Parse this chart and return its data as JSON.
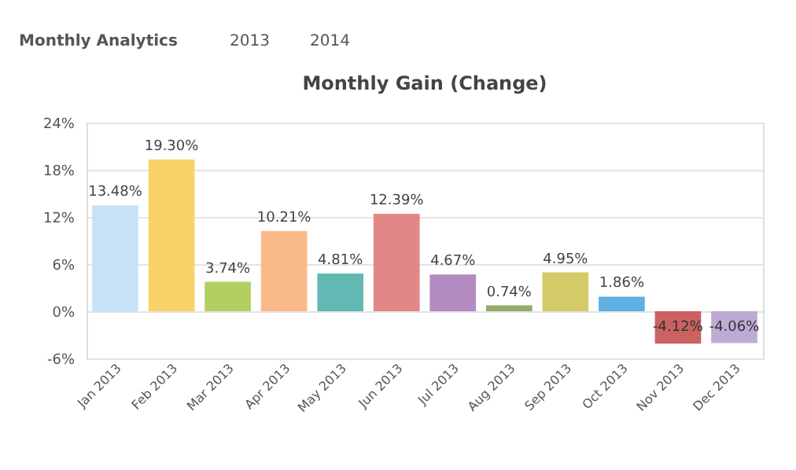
{
  "chart_data": {
    "type": "bar",
    "title": "Monthly Gain (Change)",
    "annotations": [
      "Monthly Analytics",
      "2013",
      "2014"
    ],
    "categories": [
      "Jan 2013",
      "Feb 2013",
      "Mar 2013",
      "Apr 2013",
      "May 2013",
      "Jun 2013",
      "Jul 2013",
      "Aug 2013",
      "Sep 2013",
      "Oct 2013",
      "Nov 2013",
      "Dec 2013"
    ],
    "values": [
      13.48,
      19.3,
      3.74,
      10.21,
      4.81,
      12.39,
      4.67,
      0.74,
      4.95,
      1.86,
      -4.12,
      -4.06
    ],
    "value_labels": [
      "13.48%",
      "19.30%",
      "3.74%",
      "10.21%",
      "4.81%",
      "12.39%",
      "4.67%",
      "0.74%",
      "4.95%",
      "1.86%",
      "-4.12%",
      "-4.06%"
    ],
    "colors": [
      "#c5e0f7",
      "#f7d060",
      "#b0cc58",
      "#fbb684",
      "#5ab5b0",
      "#e08080",
      "#b085bd",
      "#8ea860",
      "#d0c860",
      "#55ade0",
      "#c85858",
      "#baa6d3"
    ],
    "ylim": [
      -6,
      24
    ],
    "yticks": [
      {
        "value": -6,
        "label": "-6%"
      },
      {
        "value": 0,
        "label": "0%"
      },
      {
        "value": 6,
        "label": "6%"
      },
      {
        "value": 12,
        "label": "12%"
      },
      {
        "value": 18,
        "label": "18%"
      },
      {
        "value": 24,
        "label": "24%"
      }
    ],
    "grid": "y",
    "legend": false
  }
}
